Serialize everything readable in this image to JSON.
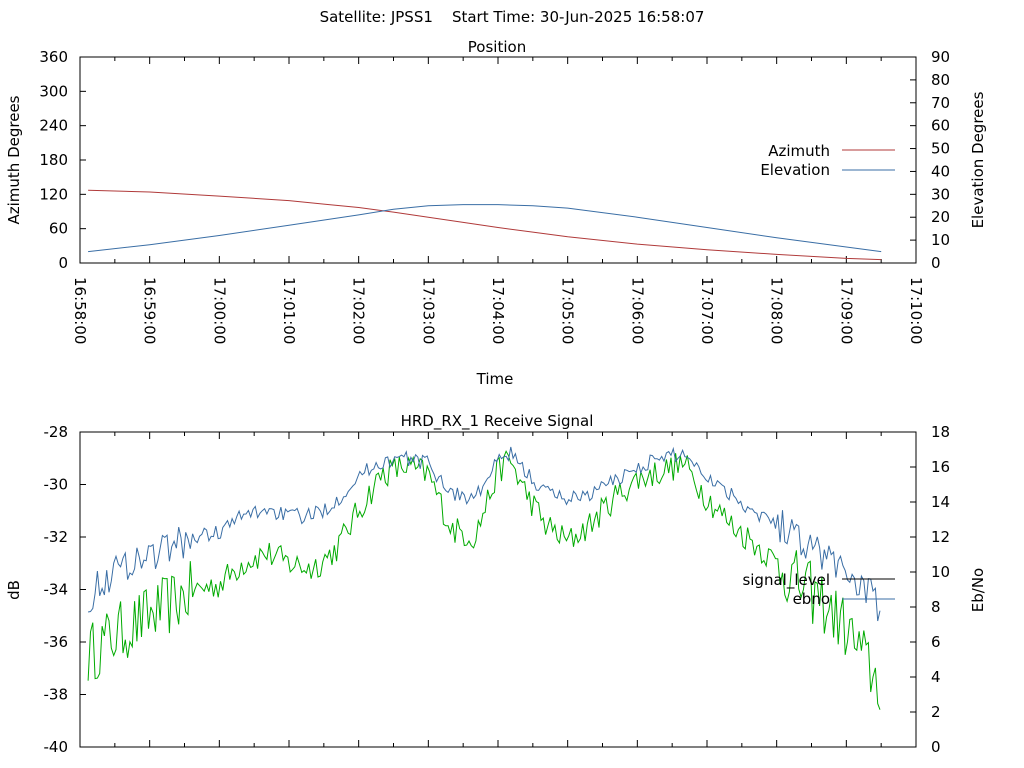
{
  "header": {
    "title": "Satellite: JPSS1    Start Time: 30-Jun-2025 16:58:07"
  },
  "chart_data": [
    {
      "type": "line",
      "title": "Position",
      "xlabel": "Time",
      "ylabel": "Azimuth Degrees",
      "y2label": "Elevation Degrees",
      "ylim": [
        0,
        360
      ],
      "y2lim": [
        0,
        90
      ],
      "xlim": [
        "16:58:00",
        "17:10:00"
      ],
      "yticks": [
        "0",
        "60",
        "120",
        "180",
        "240",
        "300",
        "360"
      ],
      "y2ticks": [
        "0",
        "10",
        "20",
        "30",
        "40",
        "50",
        "60",
        "70",
        "80",
        "90"
      ],
      "xticks": [
        "16:58:00",
        "16:59:00",
        "17:00:00",
        "17:01:00",
        "17:02:00",
        "17:03:00",
        "17:04:00",
        "17:05:00",
        "17:06:00",
        "17:07:00",
        "17:08:00",
        "17:09:00",
        "17:10:00"
      ],
      "legend_position": "right",
      "grid": false,
      "series": [
        {
          "name": "Azimuth",
          "axis": "left",
          "color": "#b03a3a",
          "x": [
            "16:58:07",
            "16:59:00",
            "17:00:00",
            "17:01:00",
            "17:01:30",
            "17:02:00",
            "17:02:30",
            "17:03:00",
            "17:03:30",
            "17:04:00",
            "17:04:30",
            "17:05:00",
            "17:06:00",
            "17:07:00",
            "17:08:00",
            "17:09:00",
            "17:09:30"
          ],
          "values": [
            127,
            124,
            117,
            109,
            103,
            97,
            89,
            80,
            71,
            62,
            54,
            46,
            33,
            23,
            15,
            8,
            6
          ]
        },
        {
          "name": "Elevation",
          "axis": "right",
          "color": "#3a6ea5",
          "x": [
            "16:58:07",
            "16:59:00",
            "17:00:00",
            "17:01:00",
            "17:02:00",
            "17:02:30",
            "17:03:00",
            "17:03:30",
            "17:04:00",
            "17:04:30",
            "17:05:00",
            "17:06:00",
            "17:07:00",
            "17:08:00",
            "17:09:00",
            "17:09:30"
          ],
          "values": [
            5,
            8,
            12,
            16.5,
            21,
            23.5,
            25,
            25.5,
            25.5,
            25,
            24,
            20,
            15.5,
            11,
            7,
            5
          ]
        }
      ]
    },
    {
      "type": "line",
      "title": "HRD_RX_1 Receive Signal",
      "ylabel": "dB",
      "y2label": "Eb/No",
      "ylim": [
        -40,
        -28
      ],
      "y2lim": [
        0,
        18
      ],
      "xlim": [
        "16:58:00",
        "17:10:00"
      ],
      "yticks": [
        "-40",
        "-38",
        "-36",
        "-34",
        "-32",
        "-30",
        "-28"
      ],
      "y2ticks": [
        "0",
        "2",
        "4",
        "6",
        "8",
        "10",
        "12",
        "14",
        "16",
        "18"
      ],
      "legend_position": "right",
      "grid": false,
      "series": [
        {
          "name": "signal_level",
          "axis": "left",
          "color": "#00aa00",
          "x": [
            "16:58:07",
            "16:58:20",
            "16:58:40",
            "16:59:00",
            "16:59:20",
            "16:59:40",
            "17:00:00",
            "17:00:20",
            "17:00:40",
            "17:01:00",
            "17:01:20",
            "17:01:40",
            "17:02:00",
            "17:02:20",
            "17:02:40",
            "17:03:00",
            "17:03:20",
            "17:03:40",
            "17:04:00",
            "17:04:10",
            "17:04:20",
            "17:04:40",
            "17:05:00",
            "17:05:20",
            "17:05:40",
            "17:06:00",
            "17:06:20",
            "17:06:40",
            "17:07:00",
            "17:07:20",
            "17:07:40",
            "17:08:00",
            "17:08:20",
            "17:08:40",
            "17:09:00",
            "17:09:20",
            "17:09:30"
          ],
          "values": [
            -36.5,
            -36,
            -35.5,
            -35,
            -34.5,
            -34,
            -33.8,
            -33,
            -32.6,
            -33,
            -33.2,
            -32.5,
            -31,
            -29.6,
            -29.3,
            -29.6,
            -31.7,
            -32,
            -29.5,
            -29,
            -30,
            -31.5,
            -32.2,
            -31.5,
            -30.5,
            -29.8,
            -29.5,
            -29.2,
            -30.5,
            -31.5,
            -32.2,
            -33,
            -33.8,
            -34.5,
            -35.5,
            -37,
            -37.8
          ]
        },
        {
          "name": "ebno",
          "axis": "right",
          "color": "#3a6ea5",
          "x": [
            "16:58:07",
            "16:58:20",
            "16:58:40",
            "16:59:00",
            "16:59:20",
            "16:59:40",
            "17:00:00",
            "17:00:20",
            "17:00:40",
            "17:01:00",
            "17:01:20",
            "17:01:40",
            "17:02:00",
            "17:02:20",
            "17:02:40",
            "17:03:00",
            "17:03:20",
            "17:03:40",
            "17:04:00",
            "17:04:10",
            "17:04:20",
            "17:04:40",
            "17:05:00",
            "17:05:20",
            "17:05:40",
            "17:06:00",
            "17:06:20",
            "17:06:40",
            "17:07:00",
            "17:07:20",
            "17:07:40",
            "17:08:00",
            "17:08:20",
            "17:08:40",
            "17:09:00",
            "17:09:20",
            "17:09:30"
          ],
          "values": [
            8.5,
            9.5,
            10.5,
            11,
            11.5,
            12,
            12.3,
            13.2,
            13.6,
            13.2,
            13.2,
            14,
            15.5,
            16.3,
            16.5,
            16.2,
            14.5,
            14.2,
            16.3,
            16.8,
            16,
            14.6,
            14.2,
            14.5,
            15.2,
            16,
            16.5,
            16.8,
            15.5,
            14.5,
            13.5,
            12.8,
            12,
            11,
            10,
            8.8,
            7.5
          ]
        }
      ]
    }
  ]
}
